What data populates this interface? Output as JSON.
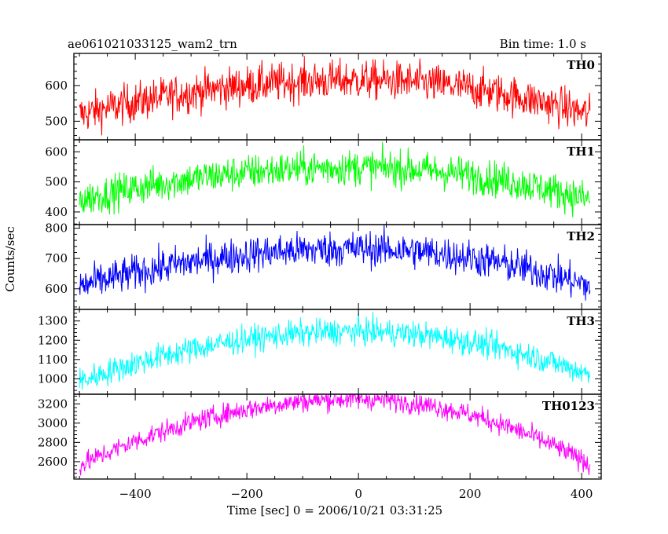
{
  "chart_data": {
    "type": "line",
    "title": "ae061021033125_wam2_trn",
    "bin_time_label": "Bin time: 1.0 s",
    "xlabel": "Time [sec] 0 = 2006/10/21 03:31:25",
    "ylabel": "Counts/sec",
    "xlim": [
      -510,
      435
    ],
    "x_range_data": [
      -500,
      415
    ],
    "xticks": [
      -400,
      -200,
      0,
      200,
      400
    ],
    "xtick_labels": [
      "−400",
      "−200",
      "0",
      "200",
      "400"
    ],
    "grid": false,
    "panels": [
      {
        "name": "TH0",
        "color": "#ff0000",
        "ylim": [
          448,
          690
        ],
        "yticks": [
          500,
          600
        ],
        "ytick_labels": [
          "500",
          "600"
        ],
        "trend": {
          "center": -5,
          "peak": 615,
          "edge_left": 518,
          "edge_right": 518
        },
        "noise": 28
      },
      {
        "name": "TH1",
        "color": "#00ff00",
        "ylim": [
          358,
          640
        ],
        "yticks": [
          400,
          500,
          600
        ],
        "ytick_labels": [
          "400",
          "500",
          "600"
        ],
        "trend": {
          "center": -5,
          "peak": 548,
          "edge_left": 440,
          "edge_right": 440
        },
        "noise": 30
      },
      {
        "name": "TH2",
        "color": "#0000ff",
        "ylim": [
          532,
          812
        ],
        "yticks": [
          600,
          700,
          800
        ],
        "ytick_labels": [
          "600",
          "700",
          "800"
        ],
        "trend": {
          "center": -5,
          "peak": 732,
          "edge_left": 608,
          "edge_right": 608
        },
        "noise": 30
      },
      {
        "name": "TH3",
        "color": "#00ffff",
        "ylim": [
          920,
          1360
        ],
        "yticks": [
          1000,
          1100,
          1200,
          1300
        ],
        "ytick_labels": [
          "1000",
          "1100",
          "1200",
          "1300"
        ],
        "trend": {
          "center": -5,
          "peak": 1245,
          "edge_left": 985,
          "edge_right": 1020
        },
        "noise": 35
      },
      {
        "name": "TH0123",
        "color": "#ff00ff",
        "ylim": [
          2420,
          3300
        ],
        "yticks": [
          2600,
          2800,
          3000,
          3200
        ],
        "ytick_labels": [
          "2600",
          "2800",
          "3000",
          "3200"
        ],
        "trend": {
          "center": -5,
          "peak": 3250,
          "edge_left": 2560,
          "edge_right": 2570
        },
        "noise": 55
      }
    ]
  }
}
